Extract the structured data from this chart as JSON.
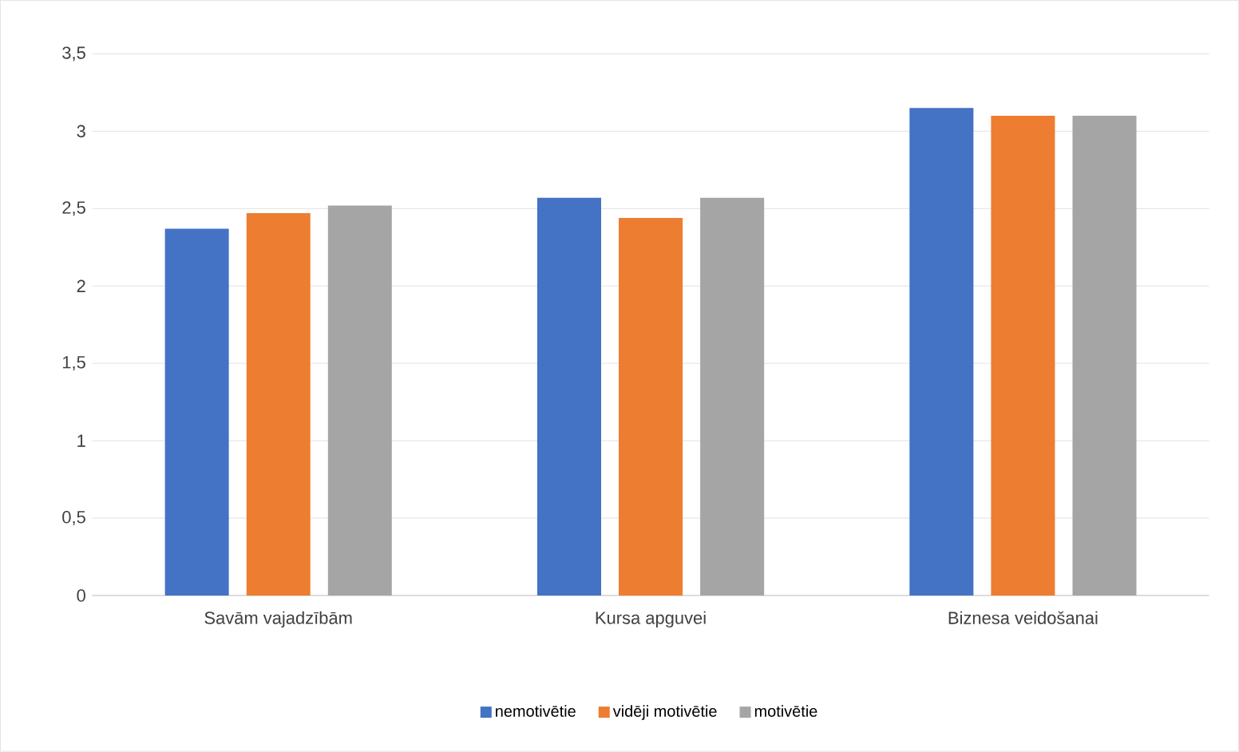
{
  "chart_data": {
    "type": "bar",
    "categories": [
      "Savām vajadzībām",
      "Kursa apguvei",
      "Biznesa veidošanai"
    ],
    "series": [
      {
        "name": "nemotivētie",
        "color": "#4472c4",
        "values": [
          2.37,
          2.57,
          3.15
        ]
      },
      {
        "name": "vidēji motivētie",
        "color": "#ed7d31",
        "values": [
          2.47,
          2.44,
          3.1
        ]
      },
      {
        "name": "motivētie",
        "color": "#a5a5a5",
        "values": [
          2.52,
          2.57,
          3.1
        ]
      }
    ],
    "ylim": [
      0,
      3.5
    ],
    "yticks": [
      0,
      {
        "value": 0.5,
        "label": "0,5"
      },
      1,
      {
        "value": 1.5,
        "label": "1,5"
      },
      2,
      {
        "value": 2.5,
        "label": "2,5"
      },
      3,
      {
        "value": 3.5,
        "label": "3,5"
      }
    ],
    "grid": "y",
    "legend": "bottom"
  }
}
